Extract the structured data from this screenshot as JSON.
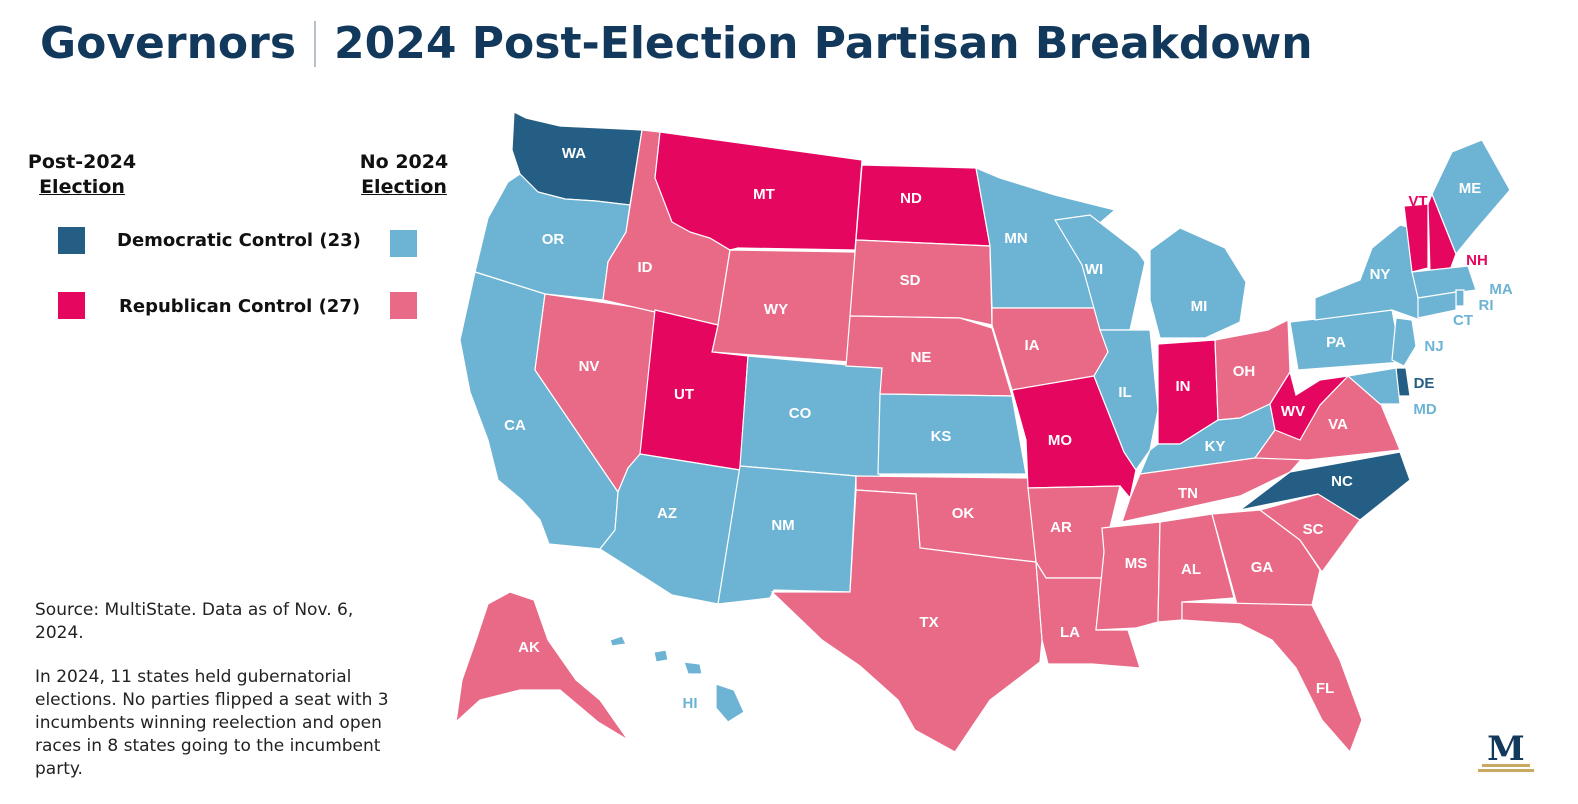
{
  "title": {
    "left": "Governors",
    "right": "2024 Post-Election Partisan Breakdown"
  },
  "legend": {
    "col1": {
      "line1": "Post-2024",
      "line2": "Election"
    },
    "col2": {
      "line1": "No 2024",
      "line2": "Election"
    },
    "dem_label": "Democratic Control (23)",
    "rep_label": "Republican Control (27)"
  },
  "colors": {
    "dem_election": "#245e84",
    "dem_no_election": "#6cb3d4",
    "rep_election": "#e5065f",
    "rep_no_election": "#e86a87",
    "title": "#12395c"
  },
  "notes": {
    "source": "Source: MultiState. Data as of Nov. 6, 2024.",
    "summary": "In 2024, 11 states held gubernatorial elections. No parties flipped a seat with 3 incumbents winning reelection and open races in 8 states going to the incumbent party."
  },
  "states": [
    {
      "abbr": "WA",
      "status": "dem_election"
    },
    {
      "abbr": "OR",
      "status": "dem_no_election"
    },
    {
      "abbr": "CA",
      "status": "dem_no_election"
    },
    {
      "abbr": "NV",
      "status": "rep_no_election"
    },
    {
      "abbr": "ID",
      "status": "rep_no_election"
    },
    {
      "abbr": "MT",
      "status": "rep_election"
    },
    {
      "abbr": "WY",
      "status": "rep_no_election"
    },
    {
      "abbr": "UT",
      "status": "rep_election"
    },
    {
      "abbr": "AZ",
      "status": "dem_no_election"
    },
    {
      "abbr": "CO",
      "status": "dem_no_election"
    },
    {
      "abbr": "NM",
      "status": "dem_no_election"
    },
    {
      "abbr": "ND",
      "status": "rep_election"
    },
    {
      "abbr": "SD",
      "status": "rep_no_election"
    },
    {
      "abbr": "NE",
      "status": "rep_no_election"
    },
    {
      "abbr": "KS",
      "status": "dem_no_election"
    },
    {
      "abbr": "OK",
      "status": "rep_no_election"
    },
    {
      "abbr": "TX",
      "status": "rep_no_election"
    },
    {
      "abbr": "MN",
      "status": "dem_no_election"
    },
    {
      "abbr": "IA",
      "status": "rep_no_election"
    },
    {
      "abbr": "MO",
      "status": "rep_election"
    },
    {
      "abbr": "AR",
      "status": "rep_no_election"
    },
    {
      "abbr": "LA",
      "status": "rep_no_election"
    },
    {
      "abbr": "WI",
      "status": "dem_no_election"
    },
    {
      "abbr": "IL",
      "status": "dem_no_election"
    },
    {
      "abbr": "MI",
      "status": "dem_no_election"
    },
    {
      "abbr": "IN",
      "status": "rep_election"
    },
    {
      "abbr": "OH",
      "status": "rep_no_election"
    },
    {
      "abbr": "KY",
      "status": "dem_no_election"
    },
    {
      "abbr": "TN",
      "status": "rep_no_election"
    },
    {
      "abbr": "MS",
      "status": "rep_no_election"
    },
    {
      "abbr": "AL",
      "status": "rep_no_election"
    },
    {
      "abbr": "GA",
      "status": "rep_no_election"
    },
    {
      "abbr": "FL",
      "status": "rep_no_election"
    },
    {
      "abbr": "SC",
      "status": "rep_no_election"
    },
    {
      "abbr": "NC",
      "status": "dem_election"
    },
    {
      "abbr": "VA",
      "status": "rep_no_election"
    },
    {
      "abbr": "WV",
      "status": "rep_election"
    },
    {
      "abbr": "PA",
      "status": "dem_no_election"
    },
    {
      "abbr": "NY",
      "status": "dem_no_election"
    },
    {
      "abbr": "VT",
      "status": "rep_election"
    },
    {
      "abbr": "NH",
      "status": "rep_election"
    },
    {
      "abbr": "ME",
      "status": "dem_no_election"
    },
    {
      "abbr": "MA",
      "status": "dem_no_election"
    },
    {
      "abbr": "RI",
      "status": "dem_no_election"
    },
    {
      "abbr": "CT",
      "status": "dem_no_election"
    },
    {
      "abbr": "NJ",
      "status": "dem_no_election"
    },
    {
      "abbr": "DE",
      "status": "dem_election"
    },
    {
      "abbr": "MD",
      "status": "dem_no_election"
    },
    {
      "abbr": "AK",
      "status": "rep_no_election"
    },
    {
      "abbr": "HI",
      "status": "dem_no_election"
    }
  ],
  "logo_letter": "M"
}
